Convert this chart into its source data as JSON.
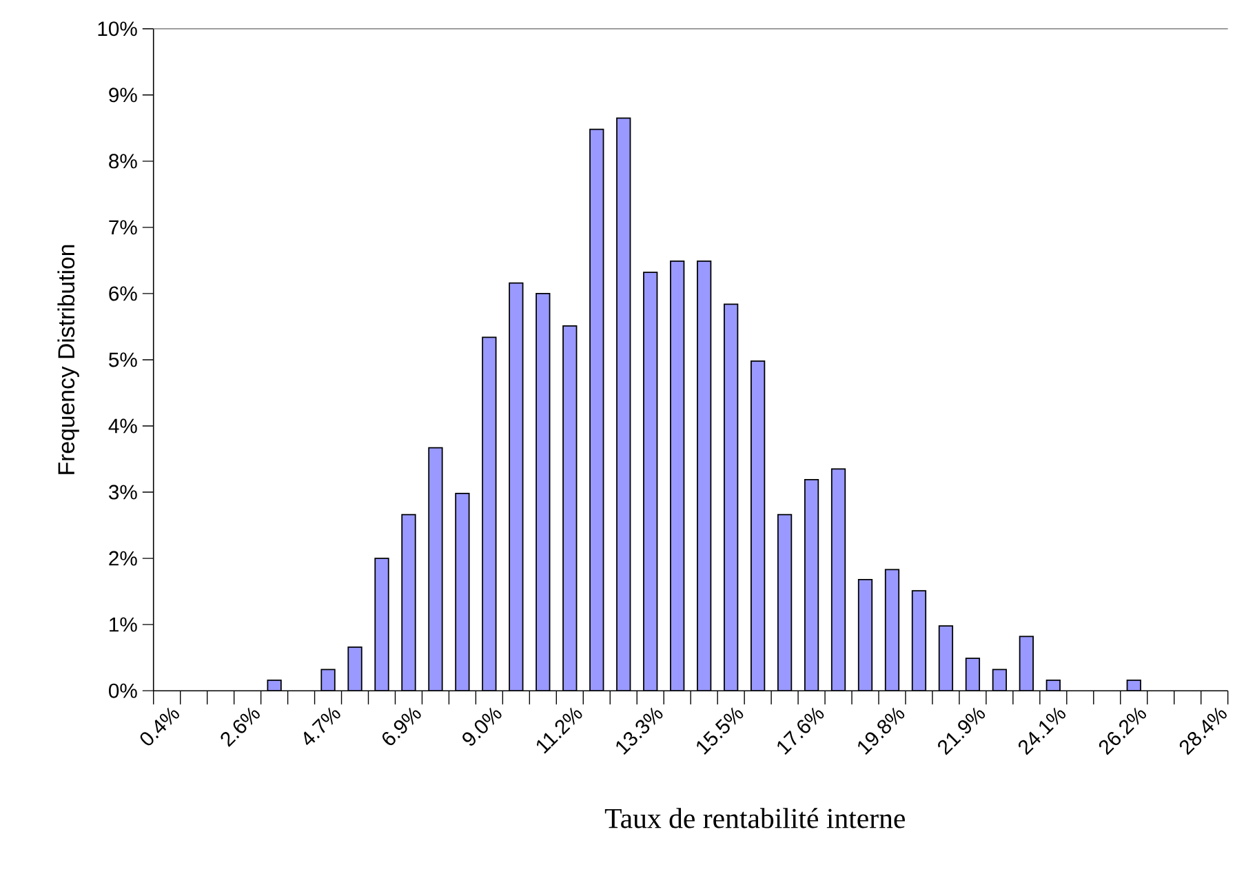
{
  "chart_data": {
    "type": "bar",
    "xlabel": "Taux de rentabilité interne",
    "ylabel": "Frequency Distribution",
    "categories": [
      "0.4%",
      null,
      null,
      "2.6%",
      null,
      null,
      "4.7%",
      null,
      null,
      "6.9%",
      null,
      null,
      "9.0%",
      null,
      null,
      "11.2%",
      null,
      null,
      "13.3%",
      null,
      null,
      "15.5%",
      null,
      null,
      "17.6%",
      null,
      null,
      "19.8%",
      null,
      null,
      "21.9%",
      null,
      null,
      "24.1%",
      null,
      null,
      "26.2%",
      null,
      null,
      "28.4%"
    ],
    "values": [
      0,
      0,
      0,
      0,
      0.16,
      0,
      0.32,
      0.66,
      2.0,
      2.66,
      3.67,
      2.98,
      5.34,
      6.16,
      6.0,
      5.51,
      8.48,
      8.65,
      6.32,
      6.49,
      6.49,
      5.84,
      4.98,
      2.66,
      3.19,
      3.35,
      1.68,
      1.83,
      1.51,
      0.98,
      0.49,
      0.32,
      0.82,
      0.16,
      0,
      0,
      0.16,
      0,
      0,
      0
    ],
    "color": "#9999ff",
    "ylim": [
      0,
      10
    ],
    "yticks": [
      {
        "value": 0,
        "label": "0%"
      },
      {
        "value": 1,
        "label": "1%"
      },
      {
        "value": 2,
        "label": "2%"
      },
      {
        "value": 3,
        "label": "3%"
      },
      {
        "value": 4,
        "label": "4%"
      },
      {
        "value": 5,
        "label": "5%"
      },
      {
        "value": 6,
        "label": "6%"
      },
      {
        "value": 7,
        "label": "7%"
      },
      {
        "value": 8,
        "label": "8%"
      },
      {
        "value": 9,
        "label": "9%"
      },
      {
        "value": 10,
        "label": "10%"
      }
    ],
    "grid": false
  }
}
